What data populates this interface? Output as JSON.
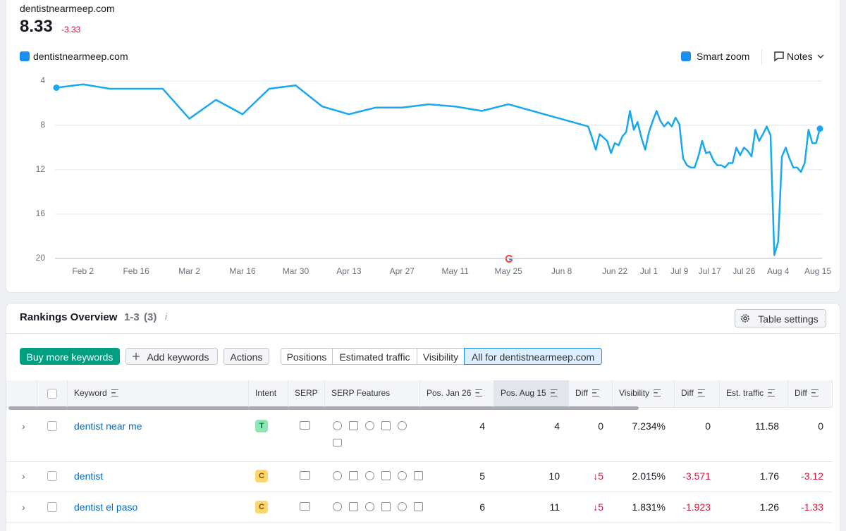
{
  "header": {
    "domain": "dentistnearmeep.com",
    "score": 8.33,
    "change": -3.33,
    "smart_zoom": "Smart zoom",
    "notes": "Notes"
  },
  "chart_data": {
    "type": "line",
    "y_inverted": true,
    "grid": true,
    "x": [
      "Jan 26",
      "Feb 2",
      "Feb 9",
      "Feb 23",
      "Mar 2",
      "Mar 9",
      "Mar 16",
      "Mar 23",
      "Mar 30",
      "Apr 6",
      "Apr 13",
      "Apr 20",
      "Apr 27",
      "May 4",
      "May 11",
      "May 18",
      "May 25",
      "Jun 15",
      "Jun 16",
      "Jun 17",
      "Jun 18",
      "Jun 19",
      "Jun 20",
      "Jun 21",
      "Jun 22",
      "Jun 23",
      "Jun 24",
      "Jun 25",
      "Jun 26",
      "Jun 27",
      "Jun 28",
      "Jun 29",
      "Jun 30",
      "Jul 1",
      "Jul 2",
      "Jul 3",
      "Jul 4",
      "Jul 5",
      "Jul 6",
      "Jul 7",
      "Jul 8",
      "Jul 9",
      "Jul 10",
      "Jul 11",
      "Jul 12",
      "Jul 13",
      "Jul 14",
      "Jul 15",
      "Jul 16",
      "Jul 17",
      "Jul 18",
      "Jul 19",
      "Jul 20",
      "Jul 21",
      "Jul 22",
      "Jul 23",
      "Jul 24",
      "Jul 25",
      "Jul 26",
      "Jul 27",
      "Jul 28",
      "Jul 29",
      "Jul 30",
      "Jul 31",
      "Aug 1",
      "Aug 2",
      "Aug 3",
      "Aug 4",
      "Aug 5",
      "Aug 6",
      "Aug 7",
      "Aug 8",
      "Aug 9",
      "Aug 10",
      "Aug 11",
      "Aug 12",
      "Aug 13",
      "Aug 14",
      "Aug 15"
    ],
    "series": [
      {
        "name": "dentistnearmeep.com",
        "color": "#17a8f0",
        "values": [
          4.6,
          4.3,
          4.7,
          4.7,
          7.4,
          5.7,
          7.0,
          4.7,
          4.4,
          6.3,
          7.0,
          6.4,
          6.4,
          6.1,
          6.3,
          6.7,
          6.1,
          8.1,
          9.1,
          10.2,
          8.8,
          9.1,
          9.4,
          10.5,
          9.6,
          9.8,
          9.0,
          8.6,
          6.7,
          8.4,
          7.7,
          9.1,
          10.2,
          8.6,
          7.6,
          6.7,
          7.6,
          8.1,
          7.7,
          8.1,
          7.3,
          7.9,
          11.0,
          11.6,
          11.8,
          11.8,
          10.8,
          9.4,
          10.5,
          10.4,
          11.2,
          11.6,
          11.6,
          11.8,
          11.4,
          11.4,
          10.0,
          10.7,
          10.0,
          10.3,
          10.8,
          8.4,
          9.4,
          8.8,
          8.1,
          8.9,
          19.7,
          18.5,
          10.8,
          10.0,
          11.0,
          11.8,
          11.8,
          12.2,
          11.4,
          8.4,
          9.6,
          9.6,
          8.3
        ]
      }
    ],
    "xlim": [
      "Jan 26",
      "Aug 15"
    ],
    "xticks": [
      "Feb 2",
      "Feb 16",
      "Mar 2",
      "Mar 16",
      "Mar 30",
      "Apr 13",
      "Apr 27",
      "May 11",
      "May 25",
      "Jun 8",
      "Jun 22",
      "Jul 1",
      "Jul 9",
      "Jul 17",
      "Jul 26",
      "Aug 4",
      "Aug 15"
    ],
    "ylim": [
      4,
      20
    ],
    "yticks": [
      4,
      8,
      12,
      16,
      20
    ]
  },
  "rankings": {
    "title": "Rankings Overview",
    "range": "1-3",
    "count": "(3)",
    "table_settings": "Table settings",
    "buy": "Buy more keywords",
    "add": "Add keywords",
    "actions": "Actions",
    "tabs": [
      "Positions",
      "Estimated traffic",
      "Visibility",
      "All for dentistnearmeep.com"
    ],
    "columns": [
      "Keyword",
      "Intent",
      "SERP",
      "SERP Features",
      "Pos. Jan 26",
      "Pos. Aug 15",
      "Diff",
      "Visibility",
      "Diff",
      "Est. traffic",
      "Diff"
    ],
    "rows": [
      {
        "keyword": "dentist near me",
        "intent": "T",
        "cells": [
          "4",
          "4",
          "0",
          "7.234%",
          "0",
          "11.58",
          "0"
        ]
      },
      {
        "keyword": "dentist",
        "intent": "C",
        "cells": [
          "5",
          "10",
          "↓5",
          "2.015%",
          "-3.571",
          "1.76",
          "-3.12"
        ]
      },
      {
        "keyword": "dentist el paso",
        "intent": "C",
        "cells": [
          "6",
          "11",
          "↓5",
          "1.831%",
          "-1.923",
          "1.26",
          "-1.33"
        ]
      }
    ]
  }
}
